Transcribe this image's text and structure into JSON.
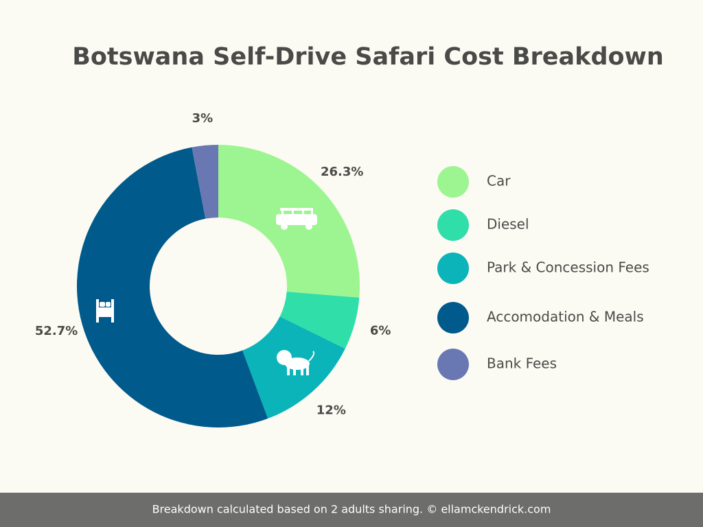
{
  "chart_data": {
    "type": "pie",
    "donut": true,
    "title": "Botswana Self-Drive Safari Cost Breakdown",
    "categories": [
      "Car",
      "Diesel",
      "Park & Concession Fees",
      "Accomodation & Meals",
      "Bank Fees"
    ],
    "values": [
      26.3,
      6,
      12,
      52.7,
      3
    ],
    "value_labels": [
      "26.3%",
      "6%",
      "12%",
      "52.7%",
      "3%"
    ],
    "colors": [
      "#9cf590",
      "#2fdea8",
      "#0ab4b8",
      "#015a8c",
      "#6978b2"
    ],
    "legend": "right",
    "footer": "Breakdown calculated based on 2 adults sharing. © ellamckendrick.com"
  }
}
